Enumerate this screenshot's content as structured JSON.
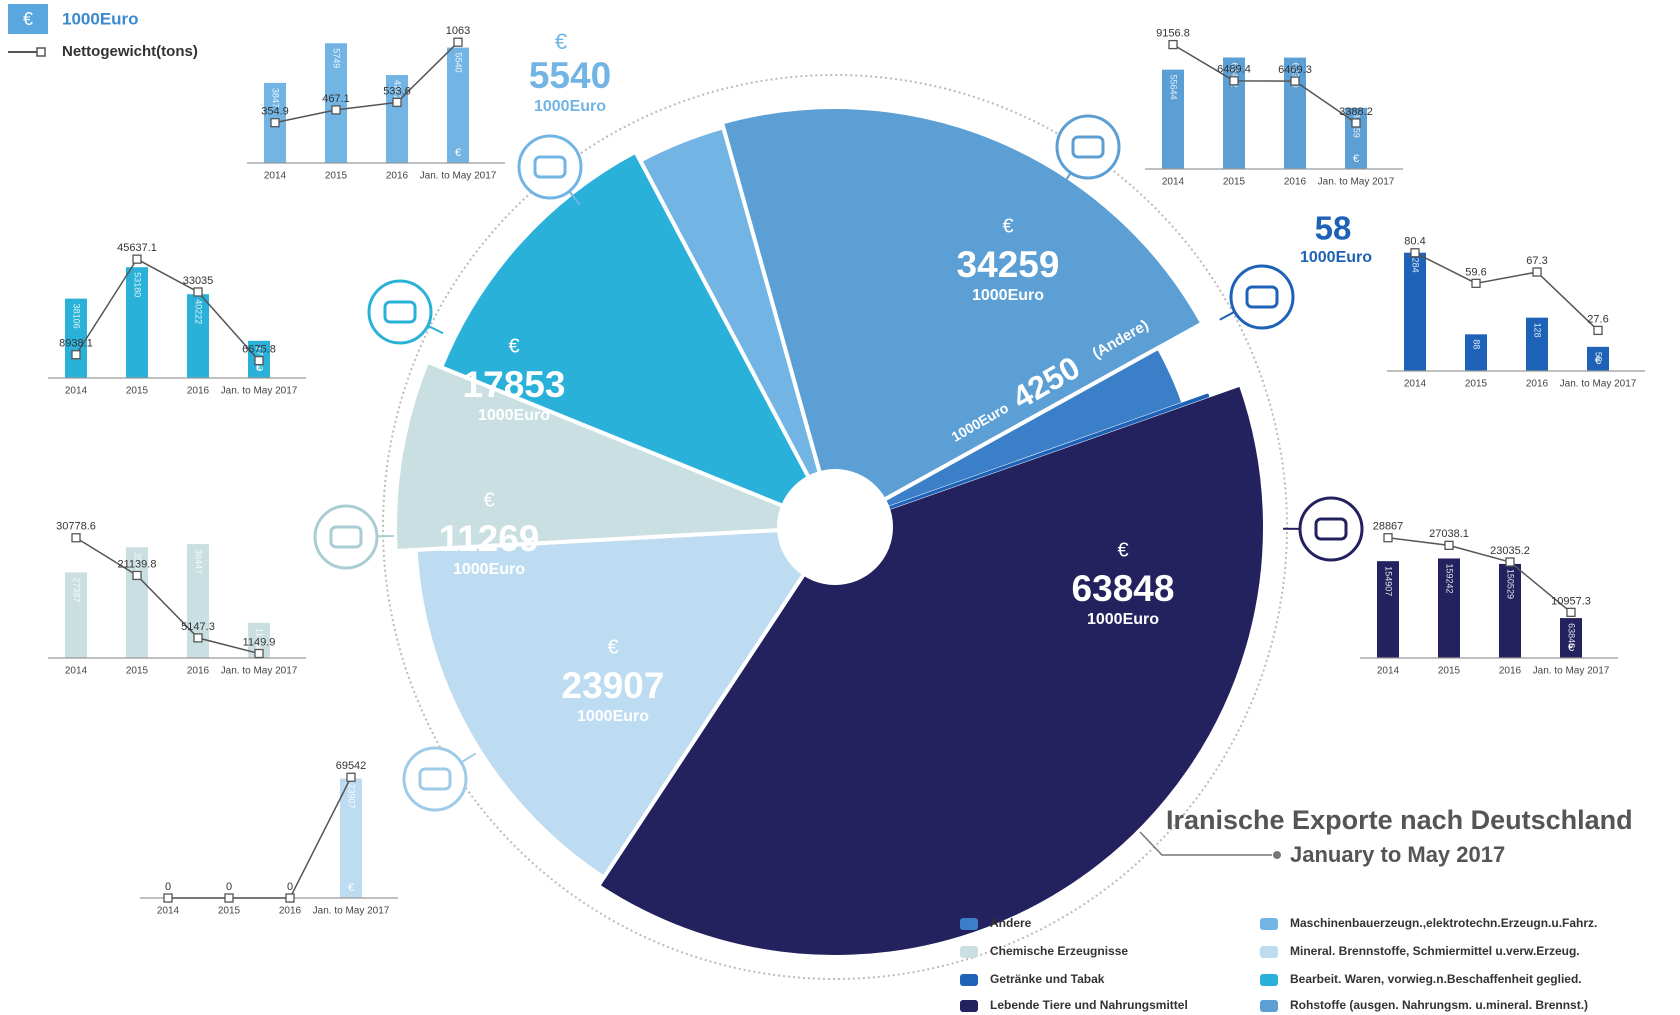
{
  "legend": {
    "line": "Nettogewicht(tons)"
  },
  "chart_data": [
    {
      "type": "pie",
      "title": "Iranische Exporte nach Deutschland",
      "subtitle": "January to May 2017",
      "unit": "1000Euro",
      "currency": "€",
      "annotation": "(Andere)",
      "categories": [
        "Maschinenbauerzeugn.,elektrotechn.Erzeugn.u.Fahrz.",
        "Rohstoffe (ausgen. Nahrungsm. u.mineral. Brennst.)",
        "Andere",
        "Getränke und Tabak",
        "Lebende Tiere und Nahrungsmittel",
        "Mineral. Brennstoffe, Schmiermittel u.verw.Erzeug.",
        "Chemische Erzeugnisse",
        "Bearbeit. Waren, vorwieg.n.Beschaffenheit geglied."
      ],
      "values": [
        5540,
        34259,
        4250,
        58,
        63848,
        23907,
        11269,
        17853
      ],
      "colors": [
        "#72b5e4",
        "#5b9fd5",
        "#3b7fc9",
        "#1e62b8",
        "#23215e",
        "#bddcf2",
        "#c9dfe1",
        "#2ab1d9"
      ]
    },
    {
      "type": "bar",
      "categories": [
        "2014",
        "2015",
        "2016",
        "Jan. to May 2017"
      ],
      "ylim": [
        0,
        6000
      ],
      "y2lim": [
        0,
        1100
      ],
      "series": [
        {
          "color": "#72b5e4",
          "values": [
            3847,
            5749,
            4222,
            5540
          ]
        },
        {
          "type": "line",
          "axis": "y2",
          "color": "#555555",
          "values": [
            354.9,
            467.1,
            533.6,
            1063
          ]
        }
      ]
    },
    {
      "type": "bar",
      "categories": [
        "2014",
        "2015",
        "2016",
        "Jan. to May 2017"
      ],
      "ylim": [
        0,
        70000
      ],
      "y2lim": [
        0,
        9200
      ],
      "series": [
        {
          "color": "#5b9fd5",
          "values": [
            55644,
            62442,
            62390,
            34259
          ]
        },
        {
          "type": "line",
          "axis": "y2",
          "color": "#555555",
          "values": [
            9156.8,
            6489.4,
            6469.3,
            3388.2
          ]
        }
      ]
    },
    {
      "type": "bar",
      "categories": [
        "2014",
        "2015",
        "2016",
        "Jan. to May 2017"
      ],
      "ylim": [
        0,
        300
      ],
      "y2lim": [
        0,
        85
      ],
      "series": [
        {
          "color": "#1e62b8",
          "values": [
            284,
            88,
            128,
            58
          ]
        },
        {
          "type": "line",
          "axis": "y2",
          "color": "#555555",
          "values": [
            80.4,
            59.6,
            67.3,
            27.6
          ]
        }
      ]
    },
    {
      "type": "bar",
      "categories": [
        "2014",
        "2015",
        "2016",
        "Jan. to May 2017"
      ],
      "ylim": [
        0,
        200000
      ],
      "y2lim": [
        0,
        30000
      ],
      "series": [
        {
          "color": "#23215e",
          "values": [
            154907,
            159242,
            150529,
            63848
          ]
        },
        {
          "type": "line",
          "axis": "y2",
          "color": "#555555",
          "values": [
            28867,
            27038.1,
            23035.2,
            10957.3
          ]
        }
      ]
    },
    {
      "type": "bar",
      "categories": [
        "2014",
        "2015",
        "2016",
        "Jan. to May 2017"
      ],
      "ylim": [
        0,
        60000
      ],
      "y2lim": [
        0,
        48000
      ],
      "series": [
        {
          "color": "#2ab1d9",
          "values": [
            38106,
            53180,
            40222,
            17853
          ]
        },
        {
          "type": "line",
          "axis": "y2",
          "color": "#555555",
          "values": [
            8938.1,
            45637.1,
            33035,
            6675.8
          ]
        }
      ]
    },
    {
      "type": "bar",
      "categories": [
        "2014",
        "2015",
        "2016",
        "Jan. to May 2017"
      ],
      "ylim": [
        0,
        40000
      ],
      "y2lim": [
        0,
        32000
      ],
      "series": [
        {
          "color": "#c9dfe1",
          "values": [
            27387,
            35444,
            36447,
            11269
          ]
        },
        {
          "type": "line",
          "axis": "y2",
          "color": "#555555",
          "values": [
            30778.6,
            21139.8,
            5147.3,
            1149.9
          ]
        }
      ]
    },
    {
      "type": "bar",
      "categories": [
        "2014",
        "2015",
        "2016",
        "Jan. to May 2017"
      ],
      "ylim": [
        0,
        25000
      ],
      "y2lim": [
        0,
        72000
      ],
      "series": [
        {
          "color": "#bddcf2",
          "values": [
            0,
            0,
            0,
            23907
          ]
        },
        {
          "type": "line",
          "axis": "y2",
          "color": "#555555",
          "values": [
            0,
            0,
            0,
            69542
          ]
        }
      ]
    }
  ]
}
